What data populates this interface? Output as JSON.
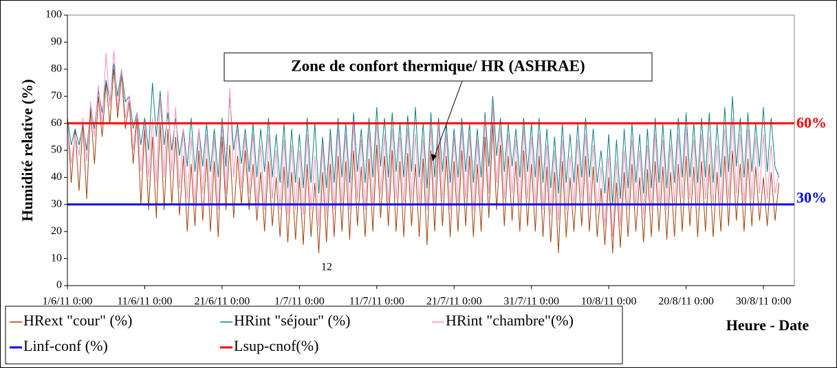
{
  "chart_data": {
    "type": "line",
    "annotations": [
      {
        "text": "Zone de confort thermique/ HR (ASHRAE)"
      },
      {
        "text": "12"
      },
      {
        "text": "60%"
      },
      {
        "text": "30%"
      }
    ],
    "ylabel": "Humidité relative (%)",
    "xlabel": "Heure - Date",
    "ylim": [
      0,
      100
    ],
    "yticks": [
      0,
      10,
      20,
      30,
      40,
      50,
      60,
      70,
      80,
      90,
      100
    ],
    "xlim": [
      0,
      94
    ],
    "xticks": [
      {
        "value": 0,
        "label": "1/6/11 0:00"
      },
      {
        "value": 10,
        "label": "11/6/11 0:00"
      },
      {
        "value": 20,
        "label": "21/6/11 0:00"
      },
      {
        "value": 30,
        "label": "1/7/11 0:00"
      },
      {
        "value": 40,
        "label": "11/7/11 0:00"
      },
      {
        "value": 50,
        "label": "21/7/11 0:00"
      },
      {
        "value": 60,
        "label": "31/7/11 0:00"
      },
      {
        "value": 70,
        "label": "10/8/11 0:00"
      },
      {
        "value": 80,
        "label": "20/8/11 0:00"
      },
      {
        "value": 90,
        "label": "30/8/11 0:00"
      }
    ],
    "x": [
      0,
      0.5,
      1,
      1.5,
      2,
      2.5,
      3,
      3.5,
      4,
      4.5,
      5,
      5.5,
      6,
      6.5,
      7,
      7.5,
      8,
      8.5,
      9,
      9.5,
      10,
      10.5,
      11,
      11.5,
      12,
      12.5,
      13,
      13.5,
      14,
      14.5,
      15,
      15.5,
      16,
      16.5,
      17,
      17.5,
      18,
      18.5,
      19,
      19.5,
      20,
      20.5,
      21,
      21.5,
      22,
      22.5,
      23,
      23.5,
      24,
      24.5,
      25,
      25.5,
      26,
      26.5,
      27,
      27.5,
      28,
      28.5,
      29,
      29.5,
      30,
      30.5,
      31,
      31.5,
      32,
      32.5,
      33,
      33.5,
      34,
      34.5,
      35,
      35.5,
      36,
      36.5,
      37,
      37.5,
      38,
      38.5,
      39,
      39.5,
      40,
      40.5,
      41,
      41.5,
      42,
      42.5,
      43,
      43.5,
      44,
      44.5,
      45,
      45.5,
      46,
      46.5,
      47,
      47.5,
      48,
      48.5,
      49,
      49.5,
      50,
      50.5,
      51,
      51.5,
      52,
      52.5,
      53,
      53.5,
      54,
      54.5,
      55,
      55.5,
      56,
      56.5,
      57,
      57.5,
      58,
      58.5,
      59,
      59.5,
      60,
      60.5,
      61,
      61.5,
      62,
      62.5,
      63,
      63.5,
      64,
      64.5,
      65,
      65.5,
      66,
      66.5,
      67,
      67.5,
      68,
      68.5,
      69,
      69.5,
      70,
      70.5,
      71,
      71.5,
      72,
      72.5,
      73,
      73.5,
      74,
      74.5,
      75,
      75.5,
      76,
      76.5,
      77,
      77.5,
      78,
      78.5,
      79,
      79.5,
      80,
      80.5,
      81,
      81.5,
      82,
      82.5,
      83,
      83.5,
      84,
      84.5,
      85,
      85.5,
      86,
      86.5,
      87,
      87.5,
      88,
      88.5,
      89,
      89.5,
      90,
      90.5,
      91,
      91.5,
      92
    ],
    "series": [
      {
        "name": "HRext \"cour\" (%)",
        "color": "#a0410d",
        "values": [
          62,
          38,
          58,
          35,
          60,
          32,
          65,
          45,
          70,
          55,
          75,
          60,
          80,
          62,
          78,
          58,
          68,
          45,
          62,
          30,
          58,
          28,
          55,
          25,
          60,
          28,
          58,
          30,
          55,
          26,
          48,
          20,
          45,
          22,
          50,
          24,
          47,
          20,
          46,
          18,
          55,
          28,
          52,
          25,
          48,
          30,
          50,
          28,
          45,
          24,
          42,
          20,
          46,
          22,
          40,
          18,
          44,
          16,
          42,
          17,
          40,
          15,
          45,
          18,
          38,
          12,
          42,
          16,
          45,
          18,
          48,
          20,
          46,
          17,
          50,
          22,
          44,
          18,
          47,
          20,
          52,
          25,
          48,
          22,
          50,
          20,
          46,
          18,
          49,
          22,
          45,
          18,
          47,
          15,
          50,
          20,
          52,
          22,
          48,
          18,
          46,
          20,
          50,
          22,
          48,
          18,
          45,
          20,
          55,
          25,
          60,
          28,
          52,
          22,
          48,
          24,
          46,
          20,
          50,
          22,
          45,
          20,
          48,
          18,
          44,
          16,
          42,
          12,
          46,
          18,
          40,
          20,
          45,
          22,
          48,
          20,
          44,
          18,
          36,
          15,
          40,
          12,
          38,
          14,
          42,
          18,
          45,
          20,
          40,
          16,
          43,
          18,
          46,
          20,
          44,
          17,
          42,
          18,
          45,
          20,
          48,
          22,
          44,
          18,
          46,
          20,
          45,
          18,
          42,
          20,
          48,
          22,
          50,
          24,
          45,
          20,
          47,
          22,
          44,
          24,
          40,
          22,
          42,
          24,
          38
        ]
      },
      {
        "name": "HRint \"séjour\" (%)",
        "color": "#0e7f7f",
        "values": [
          62,
          52,
          58,
          52,
          60,
          50,
          66,
          58,
          72,
          64,
          76,
          68,
          82,
          70,
          80,
          68,
          70,
          58,
          64,
          52,
          62,
          50,
          75,
          55,
          72,
          52,
          64,
          50,
          62,
          48,
          58,
          44,
          62,
          42,
          58,
          44,
          60,
          42,
          58,
          40,
          62,
          44,
          70,
          50,
          60,
          45,
          58,
          42,
          60,
          40,
          58,
          42,
          62,
          40,
          56,
          38,
          60,
          36,
          58,
          38,
          56,
          36,
          62,
          38,
          60,
          34,
          55,
          36,
          58,
          38,
          62,
          40,
          60,
          38,
          64,
          42,
          58,
          38,
          62,
          40,
          66,
          44,
          62,
          40,
          64,
          42,
          60,
          40,
          63,
          42,
          66,
          40,
          60,
          36,
          64,
          40,
          62,
          42,
          60,
          38,
          58,
          40,
          62,
          42,
          60,
          38,
          58,
          40,
          64,
          44,
          70,
          48,
          62,
          42,
          60,
          44,
          58,
          40,
          62,
          42,
          60,
          40,
          62,
          38,
          58,
          36,
          55,
          34,
          60,
          38,
          56,
          38,
          60,
          40,
          62,
          40,
          58,
          38,
          50,
          34,
          56,
          30,
          54,
          32,
          58,
          36,
          60,
          38,
          56,
          34,
          58,
          36,
          62,
          38,
          60,
          36,
          58,
          38,
          62,
          40,
          64,
          40,
          60,
          38,
          62,
          40,
          64,
          38,
          60,
          40,
          66,
          42,
          70,
          44,
          62,
          40,
          64,
          42,
          60,
          44,
          66,
          42,
          62,
          44,
          40
        ]
      },
      {
        "name": "HRint \"chambre\"(%)",
        "color": "#f48fc8",
        "values": [
          60,
          45,
          56,
          48,
          62,
          46,
          68,
          55,
          74,
          60,
          86,
          66,
          87,
          65,
          80,
          62,
          70,
          50,
          64,
          42,
          60,
          40,
          62,
          38,
          70,
          40,
          72,
          42,
          66,
          36,
          58,
          32,
          55,
          30,
          58,
          34,
          56,
          30,
          55,
          28,
          60,
          34,
          73,
          40,
          58,
          36,
          55,
          34,
          56,
          30,
          52,
          28,
          56,
          32,
          50,
          28,
          54,
          26,
          52,
          28,
          50,
          26,
          56,
          28,
          48,
          22,
          52,
          26,
          55,
          28,
          58,
          30,
          56,
          28,
          60,
          32,
          54,
          28,
          57,
          30,
          60,
          34,
          56,
          30,
          58,
          32,
          55,
          30,
          58,
          32,
          56,
          30,
          54,
          28,
          58,
          30,
          60,
          32,
          56,
          28,
          55,
          30,
          58,
          32,
          56,
          28,
          54,
          30,
          62,
          34,
          66,
          38,
          58,
          32,
          56,
          34,
          54,
          30,
          58,
          32,
          55,
          30,
          56,
          28,
          52,
          26,
          50,
          24,
          54,
          28,
          48,
          30,
          54,
          32,
          56,
          30,
          52,
          28,
          44,
          22,
          48,
          18,
          46,
          22,
          50,
          28,
          54,
          30,
          50,
          26,
          52,
          28,
          56,
          30,
          54,
          28,
          52,
          30,
          56,
          32,
          58,
          32,
          54,
          30,
          56,
          32,
          55,
          30,
          52,
          30,
          58,
          32,
          62,
          34,
          56,
          30,
          58,
          32,
          55,
          34,
          56,
          32,
          52,
          34,
          42
        ]
      },
      {
        "name": "Linf-conf (%)",
        "color": "#0000ff",
        "x": [
          0,
          94
        ],
        "values": [
          30,
          30
        ]
      },
      {
        "name": "Lsup-cnof(%)",
        "color": "#ff0000",
        "x": [
          0,
          94
        ],
        "values": [
          60,
          60
        ]
      }
    ]
  }
}
